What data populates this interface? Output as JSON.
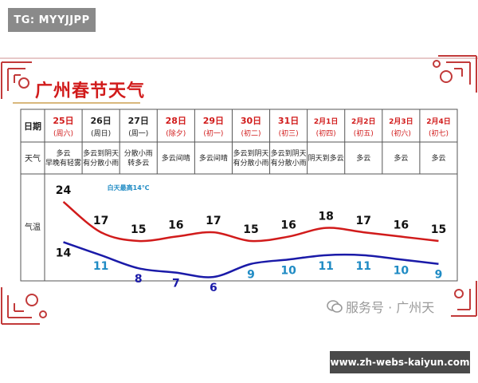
{
  "watermark_top": "TG: MYYJJPP",
  "title": "广州春节天气",
  "credit": "服务号 · 广州天",
  "bottom_watermark": "www.zh-webs-kaiyun.com",
  "colors": {
    "red": "#d11b1b",
    "blue": "#1a1aa8",
    "teal": "#1f8bc4",
    "grid": "#555555"
  },
  "chart_data": {
    "type": "line",
    "row_labels": {
      "date": "日期",
      "weather": "天气",
      "temp": "气温"
    },
    "days": [
      {
        "date": "25日",
        "sub": "(周六)",
        "weather": [
          "多云",
          "早晚有轻雾"
        ],
        "high": 24,
        "low": 14,
        "holiday": true
      },
      {
        "date": "26日",
        "sub": "(周日)",
        "weather": [
          "多云到阴天",
          "有分散小雨"
        ],
        "high": 17,
        "low": 11,
        "holiday": false
      },
      {
        "date": "27日",
        "sub": "(周一)",
        "weather": [
          "分散小雨",
          "转多云"
        ],
        "high": 15,
        "low": 8,
        "holiday": false
      },
      {
        "date": "28日",
        "sub": "(除夕)",
        "weather": [
          "多云间晴"
        ],
        "high": 16,
        "low": 7,
        "holiday": true
      },
      {
        "date": "29日",
        "sub": "(初一)",
        "weather": [
          "多云间晴"
        ],
        "high": 17,
        "low": 6,
        "holiday": true
      },
      {
        "date": "30日",
        "sub": "(初二)",
        "weather": [
          "多云到阴天",
          "有分散小雨"
        ],
        "high": 15,
        "low": 9,
        "holiday": true
      },
      {
        "date": "31日",
        "sub": "(初三)",
        "weather": [
          "多云到阴天",
          "有分散小雨"
        ],
        "high": 16,
        "low": 10,
        "holiday": true
      },
      {
        "date": "2月1日",
        "sub": "(初四)",
        "weather": [
          "阴天到多云"
        ],
        "high": 18,
        "low": 11,
        "holiday": true
      },
      {
        "date": "2月2日",
        "sub": "(初五)",
        "weather": [
          "多云"
        ],
        "high": 17,
        "low": 11,
        "holiday": true
      },
      {
        "date": "2月3日",
        "sub": "(初六)",
        "weather": [
          "多云"
        ],
        "high": 16,
        "low": 10,
        "holiday": true
      },
      {
        "date": "2月4日",
        "sub": "(初七)",
        "weather": [
          "多云"
        ],
        "high": 15,
        "low": 9,
        "holiday": true
      }
    ],
    "annotation": "白天最高14℃"
  }
}
